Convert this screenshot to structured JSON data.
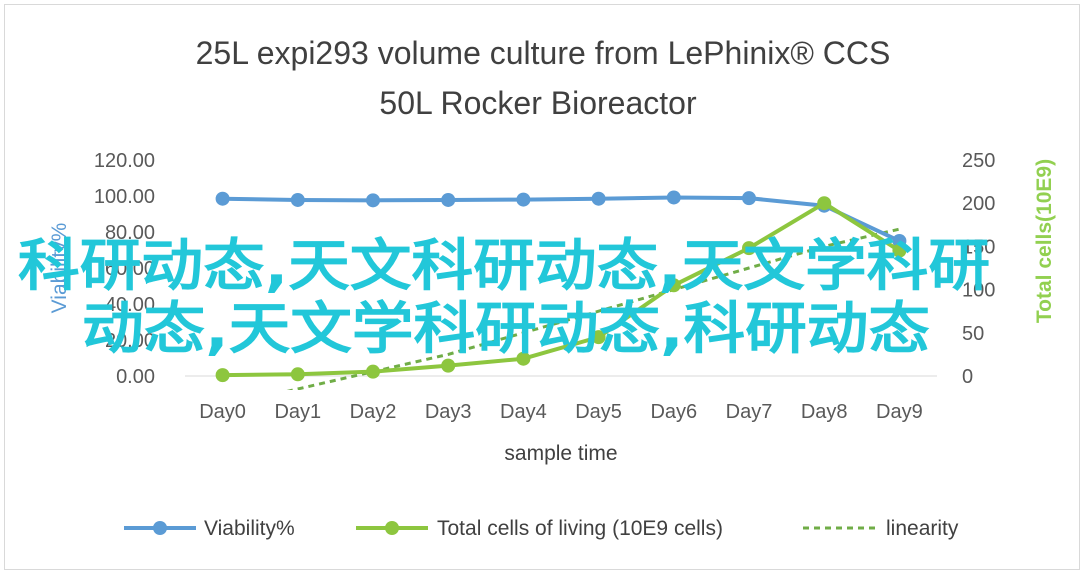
{
  "colors": {
    "viability": "#5b9bd5",
    "cells": "#8dc63f",
    "linearity": "#70ad47",
    "watermark": "#22c7d9",
    "gridline": "#d9d9d9",
    "text": "#595959",
    "y2_title": "#92d050"
  },
  "watermark": {
    "line1": "科研动态,天文科研动态,天文学科研",
    "line2": "动态,天文学科研动态,科研动态"
  },
  "chart_data": {
    "type": "line",
    "title_line1": "25L  expi293 volume culture  from LePhinix® CCS",
    "title_line2": "50L Rocker Bioreactor",
    "xlabel": "sample  time",
    "ylabel": "Viability%",
    "y2label": "Total cells(10E9)",
    "categories": [
      "Day0",
      "Day1",
      "Day2",
      "Day3",
      "Day4",
      "Day5",
      "Day6",
      "Day7",
      "Day8",
      "Day9"
    ],
    "ylim": [
      0,
      120
    ],
    "yticks": [
      "0.00",
      "20.00",
      "40.00",
      "60.00",
      "80.00",
      "100.00",
      "120.00"
    ],
    "y2lim": [
      0,
      250
    ],
    "y2ticks": [
      "0",
      "50",
      "100",
      "150",
      "200",
      "250"
    ],
    "grid": false,
    "legend_position": "bottom",
    "series": [
      {
        "name": "Viability%",
        "axis": "left",
        "values": [
          98.5,
          97.8,
          97.6,
          97.8,
          98.0,
          98.5,
          99.2,
          98.8,
          94.6,
          75.0
        ]
      },
      {
        "name": "Total cells of living (10E9 cells)",
        "axis": "right",
        "values": [
          1,
          2,
          5,
          12,
          20,
          45,
          105,
          148,
          200,
          145
        ]
      },
      {
        "name": "linearity",
        "axis": "right",
        "style": "dashed",
        "values": [
          -35,
          -15,
          5,
          25,
          50,
          75,
          100,
          125,
          150,
          170
        ]
      }
    ]
  }
}
